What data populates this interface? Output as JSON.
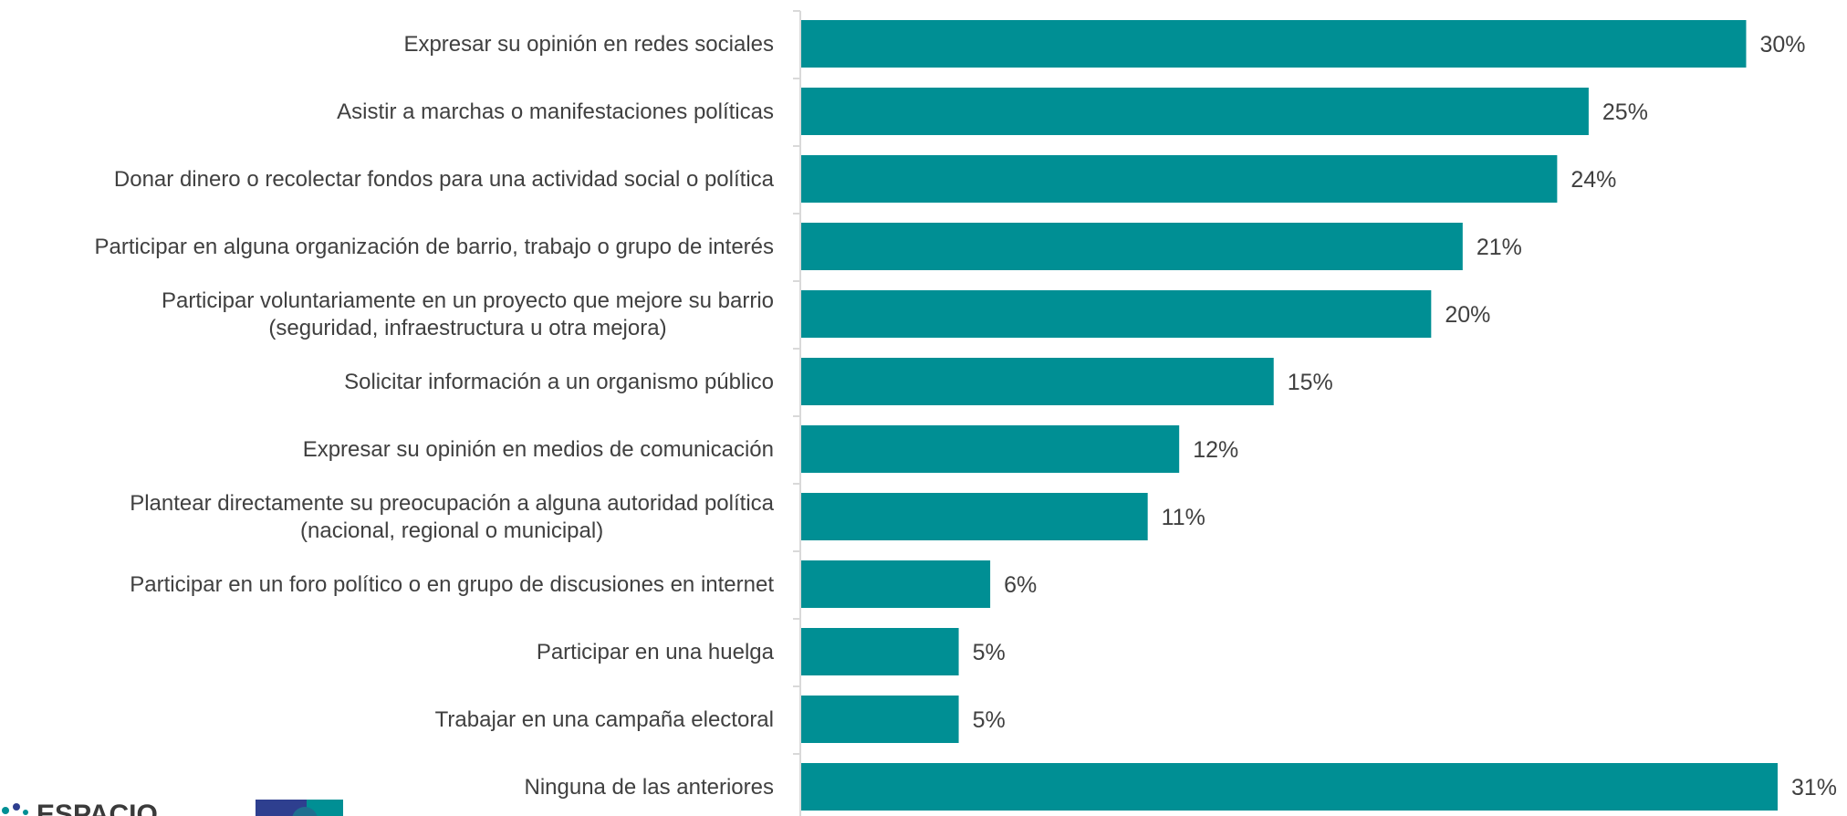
{
  "chart_data": {
    "type": "bar",
    "orientation": "horizontal",
    "categories": [
      [
        "Expresar su opinión en redes sociales"
      ],
      [
        "Asistir a marchas o manifestaciones políticas"
      ],
      [
        "Donar dinero o recolectar fondos para una actividad social o política"
      ],
      [
        "Participar en alguna organización de barrio, trabajo o grupo de interés"
      ],
      [
        "Participar voluntariamente en un proyecto que mejore su barrio",
        "(seguridad, infraestructura u otra mejora)"
      ],
      [
        "Solicitar información a un organismo público"
      ],
      [
        "Expresar su opinión en medios de comunicación"
      ],
      [
        "Plantear directamente su preocupación a alguna autoridad política",
        "(nacional, regional o municipal)"
      ],
      [
        "Participar en un foro político o en grupo de discusiones en internet"
      ],
      [
        "Participar en una huelga"
      ],
      [
        "Trabajar en una campaña electoral"
      ],
      [
        "Ninguna de las anteriores"
      ]
    ],
    "values": [
      30,
      25,
      24,
      21,
      20,
      15,
      12,
      11,
      6,
      5,
      5,
      31
    ],
    "value_labels": [
      "30%",
      "25%",
      "24%",
      "21%",
      "20%",
      "15%",
      "12%",
      "11%",
      "6%",
      "5%",
      "5%",
      "31%"
    ],
    "xlim": [
      0,
      31
    ],
    "bar_color": "#008f94",
    "grid": false,
    "legend": "none"
  },
  "logos": {
    "espacio_text": "ESPACIO",
    "colors": [
      "#008f94",
      "#2e3f8f"
    ]
  }
}
